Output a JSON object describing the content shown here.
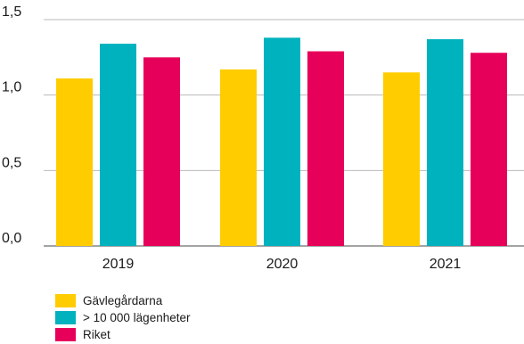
{
  "chart_data": {
    "type": "bar",
    "title": "",
    "xlabel": "",
    "ylabel": "",
    "categories": [
      "2019",
      "2020",
      "2021"
    ],
    "ylim": [
      0,
      1.5
    ],
    "yticks": [
      0,
      0.5,
      1.0,
      1.5
    ],
    "ytick_labels": [
      "0,0",
      "0,5",
      "1,0",
      "1,5"
    ],
    "grid": true,
    "legend_position": "bottom-left",
    "series": [
      {
        "name": "Gävlegårdarna",
        "color": "#ffcc00",
        "values": [
          1.11,
          1.17,
          1.15
        ]
      },
      {
        "name": "> 10 000 lägenheter",
        "color": "#00b2be",
        "values": [
          1.34,
          1.38,
          1.37
        ]
      },
      {
        "name": "Riket",
        "color": "#e6005a",
        "values": [
          1.25,
          1.29,
          1.28
        ]
      }
    ]
  }
}
